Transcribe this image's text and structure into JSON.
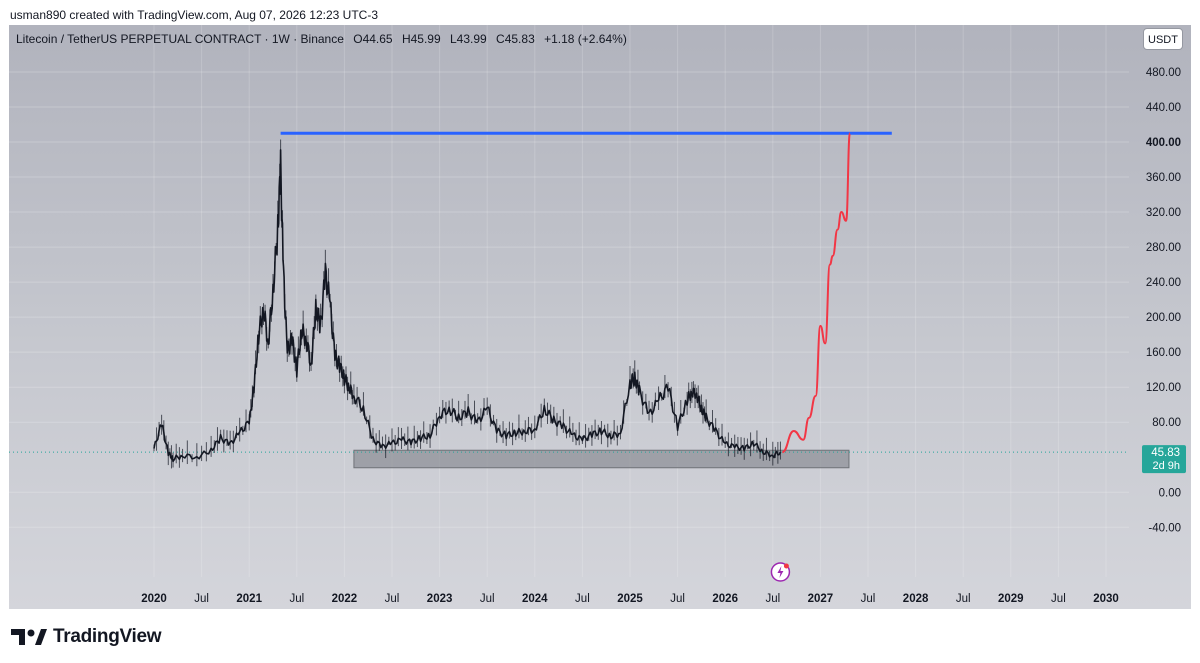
{
  "header": {
    "text": "usman890 created with TradingView.com, Aug 07, 2026 12:23 UTC-3"
  },
  "legend": {
    "symbol": "Litecoin / TetherUS PERPETUAL CONTRACT · 1W · Binance",
    "open": "O44.65",
    "high": "H45.99",
    "low": "L43.99",
    "close": "C45.83",
    "change": "+1.18 (+2.64%)"
  },
  "currency_button": "USDT",
  "price_label": {
    "value": "45.83",
    "countdown": "2d 9h"
  },
  "brand": "TradingView",
  "colors": {
    "resistance_line": "#2962ff",
    "projection": "#f23645",
    "last_price_badge": "#26a69a",
    "support_zone": "#8a8d94",
    "candles": "#131722"
  },
  "chart_data": {
    "type": "line",
    "title": "Litecoin / TetherUS PERPETUAL CONTRACT · 1W · Binance",
    "xlabel": "",
    "ylabel": "",
    "ylim": [
      -60,
      500
    ],
    "grid": true,
    "y_ticks": [
      "480.00",
      "440.00",
      "400.00",
      "360.00",
      "320.00",
      "280.00",
      "240.00",
      "200.00",
      "160.00",
      "120.00",
      "80.00",
      "0.00",
      "-40.00"
    ],
    "x_ticks": [
      "2020",
      "Jul",
      "2021",
      "Jul",
      "2022",
      "Jul",
      "2023",
      "Jul",
      "2024",
      "Jul",
      "2025",
      "Jul",
      "2026",
      "Jul",
      "2027",
      "Jul",
      "2028",
      "Jul",
      "2029",
      "Jul",
      "2030"
    ],
    "series": [
      {
        "x": [
          2020.0,
          2020.08,
          2020.15,
          2020.2,
          2020.3,
          2020.45,
          2020.6,
          2020.7,
          2020.8,
          2020.9,
          2021.0,
          2021.05,
          2021.1,
          2021.15,
          2021.2,
          2021.25,
          2021.3,
          2021.33,
          2021.36,
          2021.4,
          2021.45,
          2021.5,
          2021.55,
          2021.6,
          2021.65,
          2021.7,
          2021.75,
          2021.8,
          2021.85,
          2021.9,
          2021.95,
          2022.0,
          2022.05,
          2022.1,
          2022.2,
          2022.3,
          2022.4,
          2022.5,
          2022.6,
          2022.7,
          2022.8,
          2022.9,
          2023.0,
          2023.1,
          2023.2,
          2023.3,
          2023.4,
          2023.5,
          2023.6,
          2023.7,
          2023.8,
          2023.9,
          2024.0,
          2024.1,
          2024.2,
          2024.3,
          2024.4,
          2024.5,
          2024.6,
          2024.7,
          2024.8,
          2024.9,
          2025.0,
          2025.05,
          2025.1,
          2025.2,
          2025.3,
          2025.4,
          2025.5,
          2025.6,
          2025.65,
          2025.7,
          2025.75,
          2025.8,
          2025.9,
          2026.0,
          2026.1,
          2026.2,
          2026.3,
          2026.4,
          2026.5,
          2026.58
        ],
        "values": [
          50,
          78,
          45,
          38,
          42,
          40,
          48,
          62,
          55,
          68,
          80,
          120,
          180,
          210,
          170,
          230,
          300,
          370,
          250,
          160,
          175,
          140,
          185,
          175,
          145,
          210,
          190,
          250,
          215,
          155,
          145,
          130,
          120,
          110,
          95,
          60,
          52,
          56,
          60,
          57,
          62,
          65,
          88,
          95,
          85,
          92,
          80,
          96,
          70,
          65,
          68,
          70,
          72,
          95,
          82,
          75,
          65,
          60,
          66,
          70,
          64,
          68,
          125,
          130,
          115,
          88,
          105,
          120,
          75,
          105,
          115,
          112,
          95,
          85,
          70,
          55,
          52,
          50,
          56,
          46,
          42,
          45.83
        ]
      },
      {
        "name": "",
        "type": "horizontal-level",
        "x_start": 2021.33,
        "x_end": 2027.75,
        "value": 410
      },
      {
        "name": "",
        "type": "zone",
        "x_start": 2022.1,
        "x_end": 2027.3,
        "y_range": [
          28,
          48
        ]
      },
      {
        "name": "",
        "type": "projection",
        "x": [
          2026.6,
          2026.72,
          2026.82,
          2026.88,
          2026.95,
          2027.0,
          2027.05,
          2027.1,
          2027.13,
          2027.18,
          2027.22,
          2027.27,
          2027.31
        ],
        "values": [
          45.83,
          70,
          60,
          85,
          110,
          190,
          170,
          260,
          270,
          300,
          320,
          310,
          410
        ]
      }
    ]
  }
}
